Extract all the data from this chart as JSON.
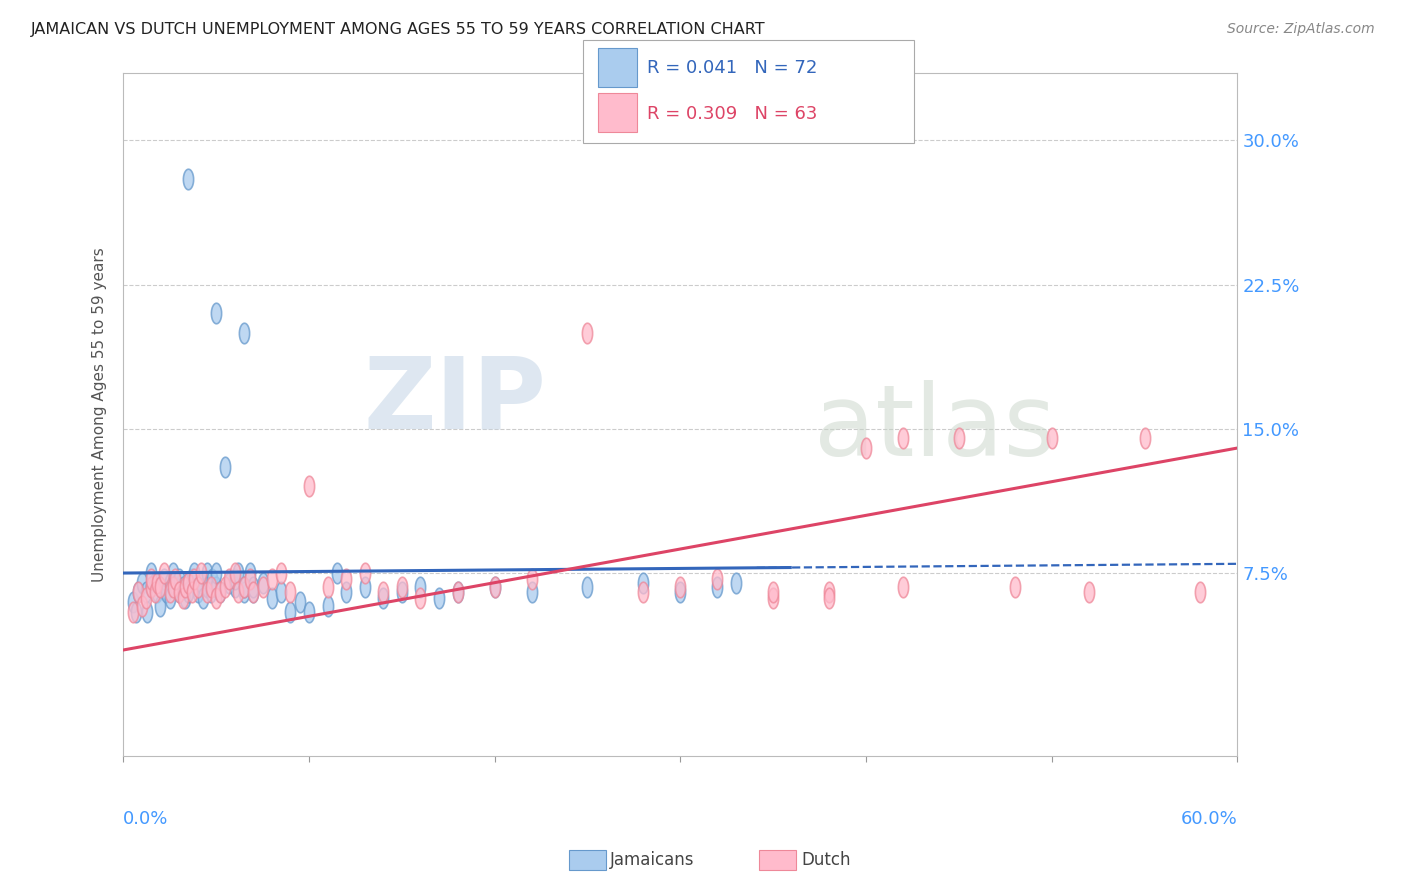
{
  "title": "JAMAICAN VS DUTCH UNEMPLOYMENT AMONG AGES 55 TO 59 YEARS CORRELATION CHART",
  "source": "Source: ZipAtlas.com",
  "ylabel": "Unemployment Among Ages 55 to 59 years",
  "ytick_labels": [
    "7.5%",
    "15.0%",
    "22.5%",
    "30.0%"
  ],
  "ytick_values": [
    0.075,
    0.15,
    0.225,
    0.3
  ],
  "xmin": 0.0,
  "xmax": 0.6,
  "ymin": -0.02,
  "ymax": 0.335,
  "series1_name": "Jamaicans",
  "series2_name": "Dutch",
  "series1_color_face": "#aaccee",
  "series1_color_edge": "#6699cc",
  "series2_color_face": "#ffbbcc",
  "series2_color_edge": "#ee8899",
  "line1_color": "#3366bb",
  "line2_color": "#dd4466",
  "watermark_zip": "ZIP",
  "watermark_atlas": "atlas",
  "j_intercept": 0.075,
  "j_slope": 0.008,
  "d_intercept": 0.035,
  "d_slope": 0.175,
  "jamaicans_x": [
    0.005,
    0.007,
    0.008,
    0.01,
    0.012,
    0.013,
    0.015,
    0.015,
    0.017,
    0.018,
    0.02,
    0.02,
    0.022,
    0.023,
    0.025,
    0.025,
    0.027,
    0.028,
    0.03,
    0.03,
    0.032,
    0.033,
    0.035,
    0.035,
    0.037,
    0.038,
    0.04,
    0.04,
    0.042,
    0.043,
    0.045,
    0.045,
    0.047,
    0.048,
    0.05,
    0.05,
    0.052,
    0.055,
    0.057,
    0.06,
    0.06,
    0.062,
    0.065,
    0.065,
    0.068,
    0.07,
    0.07,
    0.075,
    0.08,
    0.085,
    0.09,
    0.095,
    0.1,
    0.11,
    0.115,
    0.12,
    0.13,
    0.14,
    0.15,
    0.16,
    0.17,
    0.18,
    0.2,
    0.22,
    0.25,
    0.28,
    0.3,
    0.32,
    0.33,
    0.035,
    0.05,
    0.065
  ],
  "jamaicans_y": [
    0.06,
    0.055,
    0.065,
    0.07,
    0.065,
    0.055,
    0.068,
    0.075,
    0.07,
    0.065,
    0.068,
    0.058,
    0.072,
    0.065,
    0.07,
    0.062,
    0.075,
    0.068,
    0.065,
    0.072,
    0.068,
    0.062,
    0.07,
    0.065,
    0.072,
    0.075,
    0.068,
    0.065,
    0.07,
    0.062,
    0.075,
    0.068,
    0.065,
    0.072,
    0.068,
    0.075,
    0.065,
    0.13,
    0.07,
    0.068,
    0.072,
    0.075,
    0.065,
    0.068,
    0.075,
    0.065,
    0.068,
    0.07,
    0.062,
    0.065,
    0.055,
    0.06,
    0.055,
    0.058,
    0.075,
    0.065,
    0.068,
    0.062,
    0.065,
    0.068,
    0.062,
    0.065,
    0.068,
    0.065,
    0.068,
    0.07,
    0.065,
    0.068,
    0.07,
    0.28,
    0.21,
    0.2
  ],
  "dutch_x": [
    0.005,
    0.008,
    0.01,
    0.012,
    0.015,
    0.015,
    0.017,
    0.018,
    0.02,
    0.022,
    0.025,
    0.027,
    0.028,
    0.03,
    0.032,
    0.033,
    0.035,
    0.037,
    0.038,
    0.04,
    0.042,
    0.045,
    0.047,
    0.05,
    0.052,
    0.055,
    0.057,
    0.06,
    0.062,
    0.065,
    0.068,
    0.07,
    0.075,
    0.08,
    0.085,
    0.09,
    0.1,
    0.11,
    0.12,
    0.13,
    0.14,
    0.15,
    0.16,
    0.18,
    0.2,
    0.22,
    0.25,
    0.28,
    0.3,
    0.32,
    0.35,
    0.38,
    0.4,
    0.42,
    0.45,
    0.48,
    0.5,
    0.52,
    0.55,
    0.58,
    0.35,
    0.38,
    0.42
  ],
  "dutch_y": [
    0.055,
    0.065,
    0.058,
    0.062,
    0.068,
    0.072,
    0.065,
    0.07,
    0.068,
    0.075,
    0.065,
    0.068,
    0.072,
    0.065,
    0.062,
    0.068,
    0.07,
    0.065,
    0.072,
    0.068,
    0.075,
    0.065,
    0.068,
    0.062,
    0.065,
    0.068,
    0.072,
    0.075,
    0.065,
    0.068,
    0.072,
    0.065,
    0.068,
    0.072,
    0.075,
    0.065,
    0.12,
    0.068,
    0.072,
    0.075,
    0.065,
    0.068,
    0.062,
    0.065,
    0.068,
    0.072,
    0.2,
    0.065,
    0.068,
    0.072,
    0.062,
    0.065,
    0.14,
    0.068,
    0.145,
    0.068,
    0.145,
    0.065,
    0.145,
    0.065,
    0.065,
    0.062,
    0.145
  ]
}
